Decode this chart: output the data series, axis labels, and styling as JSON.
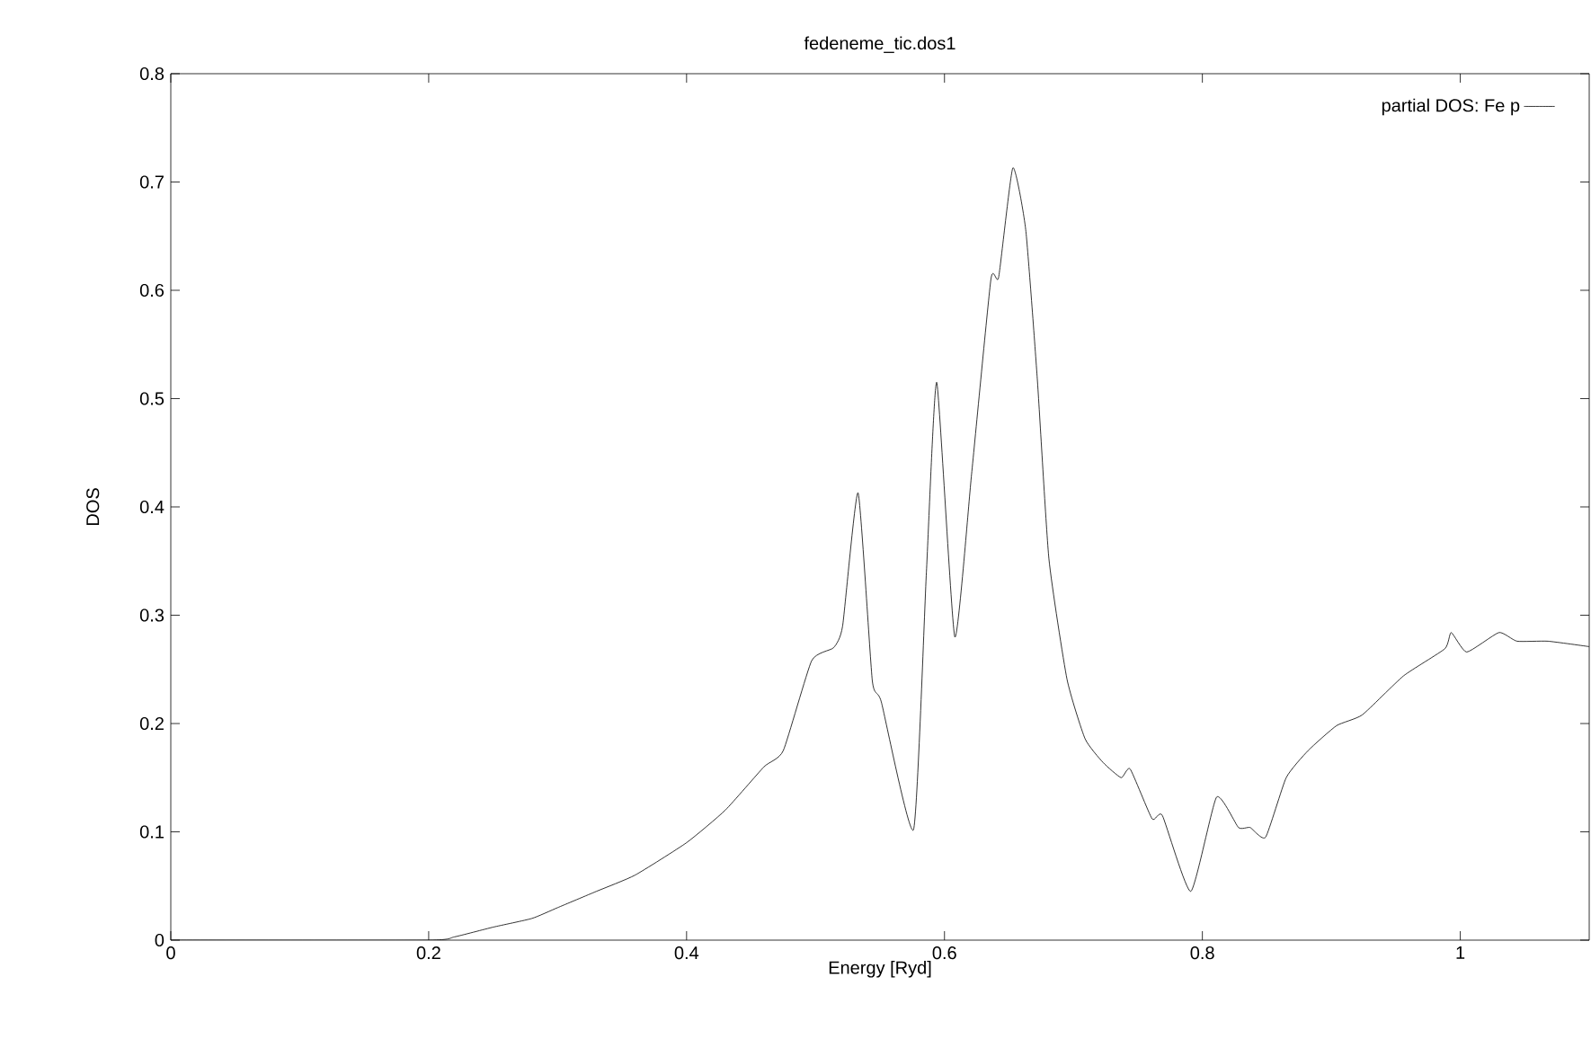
{
  "chart_data": {
    "type": "line",
    "title": "fedeneme_tic.dos1",
    "xlabel": "Energy [Ryd]",
    "ylabel": "DOS",
    "xlim": [
      0,
      1.1
    ],
    "ylim": [
      0,
      0.8
    ],
    "xticks": [
      0,
      0.2,
      0.4,
      0.6,
      0.8,
      1
    ],
    "yticks": [
      0,
      0.1,
      0.2,
      0.3,
      0.4,
      0.5,
      0.6,
      0.7,
      0.8
    ],
    "legend": "top right",
    "grid": false,
    "marker": "none",
    "line_style": "solid",
    "series": [
      {
        "name": "partial DOS: Fe p",
        "color": "#000000",
        "x": [
          0,
          0.2,
          0.22,
          0.25,
          0.28,
          0.3,
          0.33,
          0.36,
          0.4,
          0.43,
          0.46,
          0.475,
          0.497,
          0.514,
          0.521,
          0.533,
          0.544,
          0.551,
          0.576,
          0.586,
          0.594,
          0.608,
          0.621,
          0.636,
          0.642,
          0.653,
          0.663,
          0.672,
          0.681,
          0.695,
          0.709,
          0.723,
          0.737,
          0.744,
          0.761,
          0.769,
          0.791,
          0.811,
          0.828,
          0.837,
          0.849,
          0.865,
          0.882,
          0.904,
          0.924,
          0.956,
          0.988,
          0.993,
          1.005,
          1.03,
          1.044,
          1.068,
          1.1
        ],
        "values": [
          0,
          0,
          0.003,
          0.012,
          0.02,
          0.03,
          0.045,
          0.06,
          0.09,
          0.12,
          0.16,
          0.175,
          0.258,
          0.27,
          0.29,
          0.413,
          0.24,
          0.22,
          0.102,
          0.34,
          0.515,
          0.28,
          0.43,
          0.61,
          0.612,
          0.713,
          0.656,
          0.518,
          0.352,
          0.241,
          0.186,
          0.164,
          0.15,
          0.158,
          0.112,
          0.115,
          0.045,
          0.132,
          0.104,
          0.104,
          0.095,
          0.15,
          0.175,
          0.198,
          0.208,
          0.244,
          0.269,
          0.284,
          0.266,
          0.284,
          0.276,
          0.276,
          0.271
        ]
      }
    ]
  }
}
